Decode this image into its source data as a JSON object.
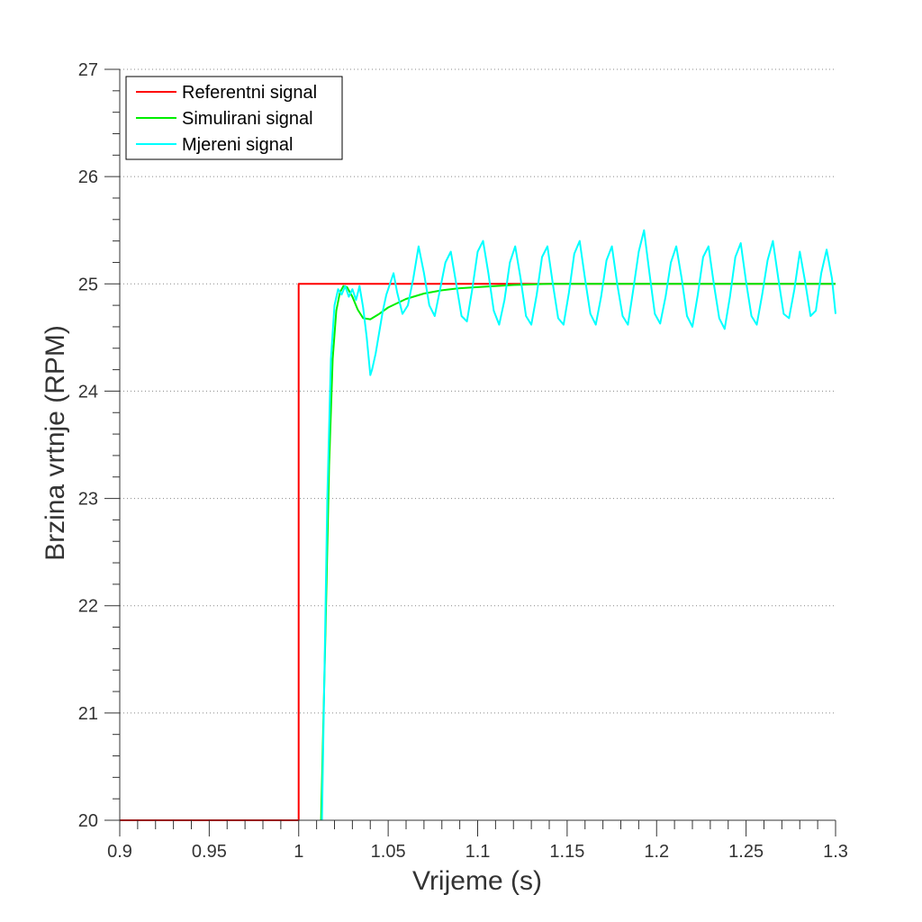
{
  "chart_data": {
    "type": "line",
    "title": "",
    "xlabel": "Vrijeme (s)",
    "ylabel": "Brzina vrtnje (RPM)",
    "xlim": [
      0.9,
      1.3
    ],
    "ylim": [
      20,
      27
    ],
    "xticks": [
      0.9,
      0.95,
      1.0,
      1.05,
      1.1,
      1.15,
      1.2,
      1.25,
      1.3
    ],
    "xtick_labels": [
      "0.9",
      "0.95",
      "1",
      "1.05",
      "1.1",
      "1.15",
      "1.2",
      "1.25",
      "1.3"
    ],
    "yticks": [
      20,
      21,
      22,
      23,
      24,
      25,
      26,
      27
    ],
    "ytick_labels": [
      "20",
      "21",
      "22",
      "23",
      "24",
      "25",
      "26",
      "27"
    ],
    "grid": "horizontal dotted",
    "legend_position": "top-left",
    "series": [
      {
        "name": "Referentni signal",
        "color": "#ff0000",
        "x": [
          0.9,
          1.0,
          1.0,
          1.3
        ],
        "y": [
          20,
          20,
          25,
          25
        ]
      },
      {
        "name": "Simulirani signal",
        "color": "#00ee00",
        "x": [
          1.0125,
          1.015,
          1.017,
          1.019,
          1.021,
          1.023,
          1.025,
          1.027,
          1.03,
          1.033,
          1.036,
          1.04,
          1.045,
          1.05,
          1.06,
          1.07,
          1.08,
          1.09,
          1.1,
          1.12,
          1.14,
          1.16,
          1.2,
          1.25,
          1.3
        ],
        "y": [
          20.0,
          21.8,
          23.3,
          24.3,
          24.75,
          24.92,
          24.98,
          24.97,
          24.88,
          24.76,
          24.68,
          24.67,
          24.72,
          24.78,
          24.86,
          24.91,
          24.94,
          24.96,
          24.97,
          24.99,
          25.0,
          25.0,
          25.0,
          25.0,
          25.0
        ]
      },
      {
        "name": "Mjereni signal",
        "color": "#00ffff",
        "x": [
          1.013,
          1.0145,
          1.016,
          1.018,
          1.02,
          1.022,
          1.024,
          1.026,
          1.028,
          1.03,
          1.032,
          1.034,
          1.036,
          1.038,
          1.04,
          1.041,
          1.043,
          1.045,
          1.047,
          1.049,
          1.051,
          1.053,
          1.055,
          1.058,
          1.061,
          1.064,
          1.067,
          1.07,
          1.073,
          1.076,
          1.079,
          1.082,
          1.085,
          1.088,
          1.091,
          1.094,
          1.097,
          1.1,
          1.103,
          1.106,
          1.109,
          1.112,
          1.115,
          1.118,
          1.121,
          1.124,
          1.127,
          1.13,
          1.133,
          1.136,
          1.139,
          1.142,
          1.145,
          1.148,
          1.151,
          1.154,
          1.157,
          1.16,
          1.163,
          1.166,
          1.169,
          1.172,
          1.175,
          1.178,
          1.181,
          1.184,
          1.187,
          1.19,
          1.193,
          1.196,
          1.199,
          1.202,
          1.205,
          1.208,
          1.211,
          1.214,
          1.217,
          1.22,
          1.223,
          1.226,
          1.229,
          1.232,
          1.235,
          1.238,
          1.241,
          1.244,
          1.247,
          1.25,
          1.253,
          1.256,
          1.259,
          1.262,
          1.265,
          1.268,
          1.271,
          1.274,
          1.277,
          1.28,
          1.283,
          1.286,
          1.289,
          1.292,
          1.295,
          1.298,
          1.3
        ],
        "y": [
          20.0,
          21.5,
          23.0,
          24.3,
          24.8,
          24.95,
          24.9,
          24.98,
          24.88,
          24.95,
          24.85,
          24.98,
          24.78,
          24.5,
          24.15,
          24.2,
          24.35,
          24.55,
          24.75,
          24.9,
          25.0,
          25.1,
          24.92,
          24.72,
          24.8,
          25.05,
          25.35,
          25.1,
          24.8,
          24.7,
          24.95,
          25.2,
          25.3,
          25.0,
          24.7,
          24.65,
          24.95,
          25.3,
          25.4,
          25.1,
          24.75,
          24.62,
          24.85,
          25.2,
          25.35,
          25.05,
          24.7,
          24.62,
          24.9,
          25.25,
          25.35,
          25.0,
          24.68,
          24.62,
          24.92,
          25.28,
          25.4,
          25.05,
          24.72,
          24.62,
          24.88,
          25.22,
          25.35,
          25.0,
          24.7,
          24.62,
          24.95,
          25.3,
          25.5,
          25.1,
          24.72,
          24.63,
          24.88,
          25.2,
          25.35,
          25.05,
          24.7,
          24.6,
          24.9,
          25.25,
          25.35,
          25.0,
          24.68,
          24.58,
          24.88,
          25.25,
          25.38,
          25.02,
          24.7,
          24.62,
          24.9,
          25.22,
          25.4,
          25.05,
          24.72,
          24.68,
          24.95,
          25.3,
          25.02,
          24.7,
          24.75,
          25.1,
          25.32,
          25.05,
          24.72
        ]
      }
    ]
  }
}
